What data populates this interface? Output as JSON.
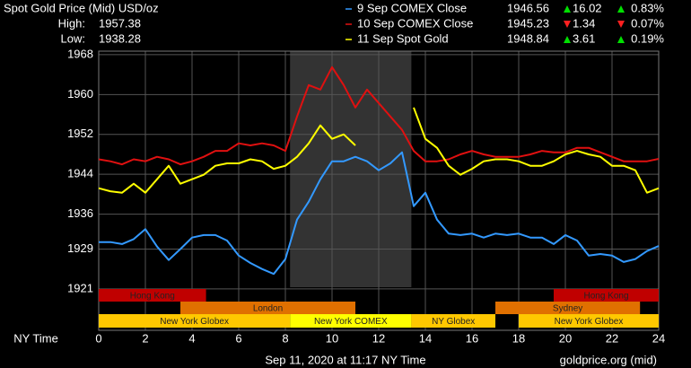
{
  "chart_data": {
    "type": "line",
    "title": "Spot Gold Price (Mid) USD/oz",
    "stats": [
      {
        "label": "High:",
        "value": 1957.38
      },
      {
        "label": "Low:",
        "value": 1938.28
      }
    ],
    "x": [
      0,
      0.5,
      1,
      1.5,
      2,
      2.5,
      3,
      3.5,
      4,
      4.5,
      5,
      5.5,
      6,
      6.5,
      7,
      7.5,
      8,
      8.5,
      9,
      9.5,
      10,
      10.5,
      11,
      11.5,
      12,
      12.5,
      13,
      13.5,
      14,
      14.5,
      15,
      15.5,
      16,
      16.5,
      17,
      17.5,
      18,
      18.5,
      19,
      19.5,
      20,
      20.5,
      21,
      21.5,
      22,
      22.5,
      23,
      23.5,
      24
    ],
    "series": [
      {
        "name": "9 Sep COMEX Close",
        "color": "#3399ff",
        "last": 1946.56,
        "change": 16.02,
        "change_pct": "0.83%",
        "direction": "up",
        "values": [
          1930.4,
          1930.4,
          1930,
          1931,
          1933,
          1929.5,
          1926.8,
          1929,
          1931.3,
          1931.8,
          1931.8,
          1930.7,
          1927.7,
          1926.2,
          1925,
          1924,
          1927,
          1934.9,
          1938.5,
          1943,
          1946.6,
          1946.6,
          1947.5,
          1946.6,
          1944.8,
          1946.2,
          1948.4,
          1937.6,
          1940.3,
          1934.9,
          1932.1,
          1931.8,
          1932.1,
          1931.3,
          1932.1,
          1931.8,
          1932.1,
          1931.3,
          1931.3,
          1930,
          1931.8,
          1930.7,
          1927.7,
          1928,
          1927.7,
          1926.4,
          1927,
          1928.6,
          1929.6
        ]
      },
      {
        "name": "10 Sep COMEX Close",
        "color": "#e01010",
        "last": 1945.23,
        "change": 1.34,
        "change_pct": "0.07%",
        "direction": "down",
        "values": [
          1947,
          1946.6,
          1946,
          1947,
          1946.6,
          1947.5,
          1947,
          1946,
          1946.6,
          1947.5,
          1948.7,
          1948.7,
          1950.2,
          1949.8,
          1950.2,
          1949.8,
          1948.7,
          1955.6,
          1961.9,
          1961,
          1965.5,
          1961.9,
          1957.4,
          1961,
          1958.3,
          1955.6,
          1952.9,
          1948.7,
          1946.6,
          1946.6,
          1947,
          1948,
          1948.7,
          1948,
          1947.5,
          1947.5,
          1947.5,
          1948,
          1948.7,
          1948.4,
          1948.4,
          1949.3,
          1949.3,
          1948.4,
          1947.5,
          1946.6,
          1946.6,
          1946.6,
          1947.1
        ]
      },
      {
        "name": "11 Sep Spot Gold",
        "color": "#ffff00",
        "last": 1948.84,
        "change": 3.61,
        "change_pct": "0.19%",
        "direction": "up",
        "values": [
          1941.2,
          1940.6,
          1940.3,
          1942.1,
          1940.3,
          1943,
          1945.7,
          1942.1,
          1943,
          1943.9,
          1945.7,
          1946.2,
          1946.2,
          1947,
          1946.6,
          1945.1,
          1945.7,
          1947.5,
          1950.2,
          1953.8,
          1951.1,
          1952,
          1949.8,
          null,
          null,
          null,
          null,
          1957.4,
          1951.1,
          1949.3,
          1945.7,
          1943.9,
          1945.1,
          1946.6,
          1947,
          1947,
          1946.6,
          1945.7,
          1945.7,
          1946.6,
          1948,
          1948.7,
          1948,
          1947.5,
          1945.7,
          1945.7,
          1944.8,
          1940.3,
          1941.2
        ]
      }
    ],
    "xlabel": "NY Time",
    "xlim": [
      0,
      24
    ],
    "xticks": [
      0,
      2,
      4,
      6,
      8,
      10,
      12,
      14,
      16,
      18,
      20,
      22,
      24
    ],
    "ylim": [
      1912.7,
      1968.7
    ],
    "yticks": [
      1968,
      1960,
      1952,
      1944,
      1936,
      1929,
      1921
    ],
    "grid": true,
    "highlight": [
      8.2,
      13.4
    ],
    "sessions": [
      [
        {
          "label": "Hong Kong",
          "start": 0,
          "end": 4.6,
          "color": "#c00000"
        },
        {
          "label": "Hong Kong",
          "start": 19.5,
          "end": 24,
          "color": "#c00000"
        }
      ],
      [
        {
          "label": "London",
          "start": 3.5,
          "end": 11,
          "color": "#e07000"
        },
        {
          "label": "Sydney",
          "start": 17,
          "end": 23.2,
          "color": "#e07000"
        }
      ],
      [
        {
          "label": "New York Globex",
          "start": 0,
          "end": 8.2,
          "color": "#ffc800"
        },
        {
          "label": "New York COMEX",
          "start": 8.2,
          "end": 13.4,
          "color": "#ffff00"
        },
        {
          "label": "NY Globex",
          "start": 13.4,
          "end": 17,
          "color": "#ffc800"
        },
        {
          "label": "New York Globex",
          "start": 18,
          "end": 24,
          "color": "#ffc800"
        }
      ]
    ],
    "footer": "Sep 11, 2020 at 11:17 NY Time",
    "source": "goldprice.org (mid)"
  }
}
